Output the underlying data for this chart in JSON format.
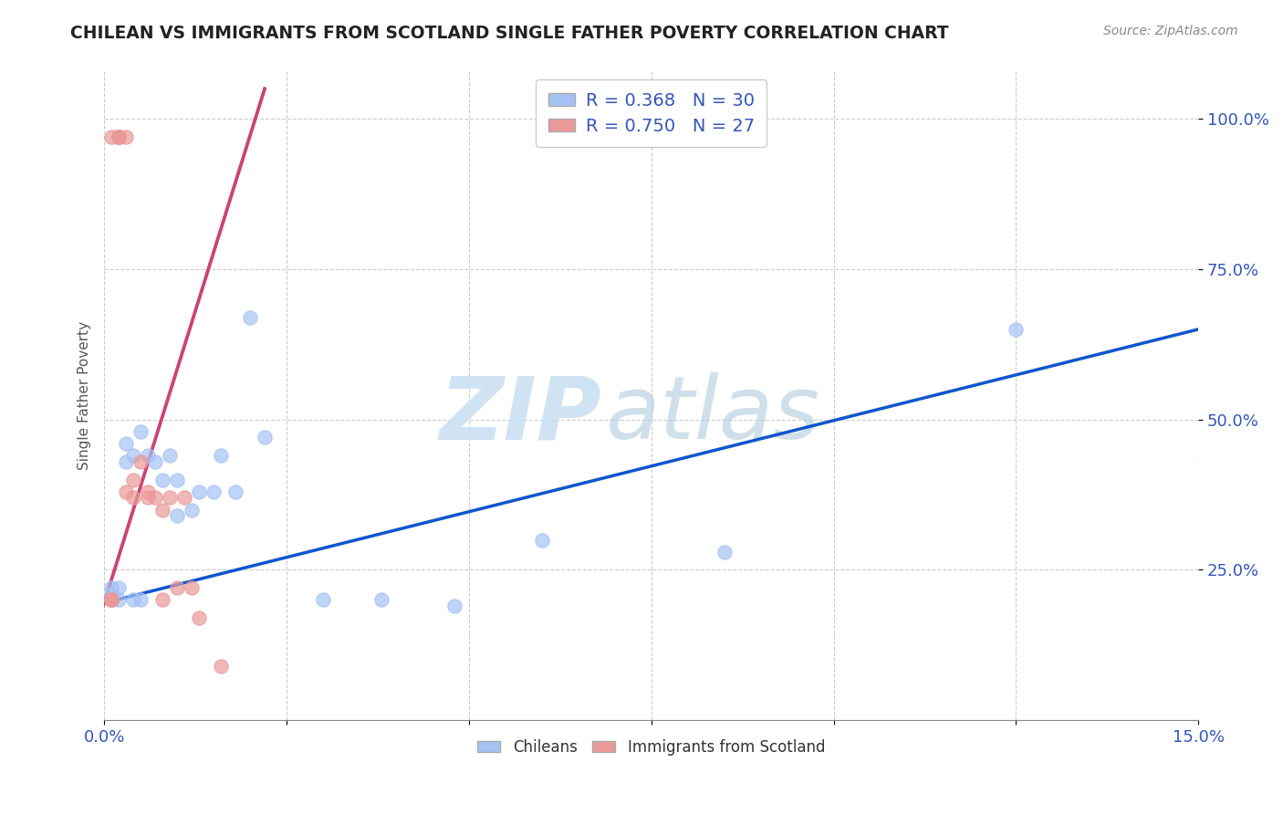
{
  "title": "CHILEAN VS IMMIGRANTS FROM SCOTLAND SINGLE FATHER POVERTY CORRELATION CHART",
  "source": "Source: ZipAtlas.com",
  "ylabel": "Single Father Poverty",
  "xlim": [
    0.0,
    0.15
  ],
  "ylim": [
    0.0,
    1.08
  ],
  "ytick_labels": [
    "25.0%",
    "50.0%",
    "75.0%",
    "100.0%"
  ],
  "ytick_values": [
    0.25,
    0.5,
    0.75,
    1.0
  ],
  "blue_R": 0.368,
  "blue_N": 30,
  "pink_R": 0.75,
  "pink_N": 27,
  "blue_color": "#a4c2f4",
  "pink_color": "#ea9999",
  "blue_line_color": "#1155cc",
  "pink_line_color": "#cc4477",
  "legend_label_blue": "Chileans",
  "legend_label_pink": "Immigrants from Scotland",
  "blue_scatter_x": [
    0.001,
    0.001,
    0.001,
    0.002,
    0.002,
    0.003,
    0.003,
    0.004,
    0.004,
    0.005,
    0.005,
    0.006,
    0.007,
    0.008,
    0.009,
    0.01,
    0.01,
    0.012,
    0.013,
    0.015,
    0.016,
    0.018,
    0.02,
    0.022,
    0.03,
    0.038,
    0.048,
    0.06,
    0.085,
    0.125
  ],
  "blue_scatter_y": [
    0.2,
    0.21,
    0.22,
    0.2,
    0.22,
    0.43,
    0.46,
    0.44,
    0.2,
    0.48,
    0.2,
    0.44,
    0.43,
    0.4,
    0.44,
    0.34,
    0.4,
    0.35,
    0.38,
    0.38,
    0.44,
    0.38,
    0.67,
    0.47,
    0.2,
    0.2,
    0.19,
    0.3,
    0.28,
    0.65
  ],
  "pink_scatter_x": [
    0.001,
    0.001,
    0.001,
    0.001,
    0.001,
    0.002,
    0.002,
    0.002,
    0.002,
    0.002,
    0.002,
    0.003,
    0.003,
    0.004,
    0.004,
    0.005,
    0.006,
    0.006,
    0.007,
    0.008,
    0.008,
    0.009,
    0.01,
    0.011,
    0.012,
    0.013,
    0.016
  ],
  "pink_scatter_y": [
    0.2,
    0.2,
    0.2,
    0.2,
    0.97,
    0.97,
    0.97,
    0.97,
    0.97,
    0.97,
    0.97,
    0.97,
    0.38,
    0.37,
    0.4,
    0.43,
    0.38,
    0.37,
    0.37,
    0.2,
    0.35,
    0.37,
    0.22,
    0.37,
    0.22,
    0.17,
    0.09
  ],
  "blue_line_x0": 0.0,
  "blue_line_y0": 0.195,
  "blue_line_x1": 0.15,
  "blue_line_y1": 0.65,
  "pink_line_x0": 0.0,
  "pink_line_y0": 0.195,
  "pink_line_x1": 0.022,
  "pink_line_y1": 1.05
}
